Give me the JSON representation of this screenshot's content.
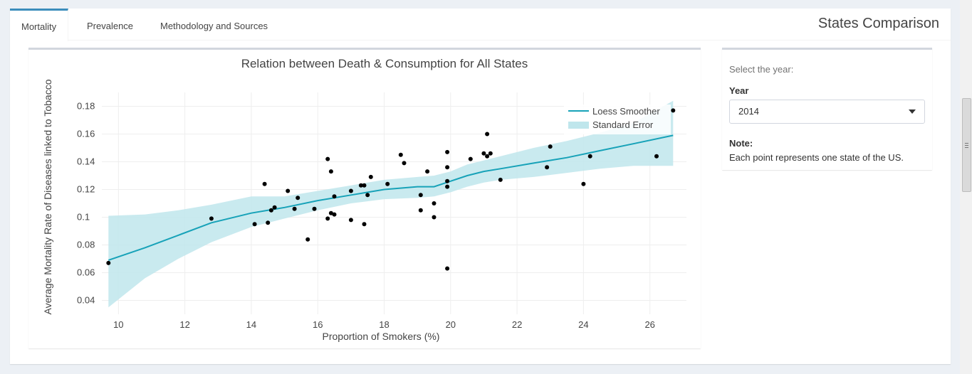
{
  "tabs": [
    {
      "label": "Mortality",
      "active": true
    },
    {
      "label": "Prevalence",
      "active": false
    },
    {
      "label": "Methodology and Sources",
      "active": false
    }
  ],
  "header": {
    "title": "States Comparison"
  },
  "sidebar": {
    "help_text": "Select the year:",
    "year_label": "Year",
    "year_selected": "2014",
    "note_label": "Note:",
    "note_text": "Each point represents one state of the US."
  },
  "colors": {
    "accent": "#3c8dbc",
    "line": "#17a2b8",
    "band": "#bfe6ec",
    "points": "#000000"
  },
  "chart_data": {
    "type": "scatter",
    "title": "Relation between Death & Consumption for All States",
    "xlabel": "Proportion of Smokers (%)",
    "ylabel": "Average Mortality Rate of Diseases linked to Tobacco",
    "xlim": [
      9.5,
      27.1
    ],
    "ylim": [
      0.03,
      0.19
    ],
    "x_ticks": [
      10,
      12,
      14,
      16,
      18,
      20,
      22,
      24,
      26
    ],
    "y_ticks": [
      0.04,
      0.06,
      0.08,
      0.1,
      0.12,
      0.14,
      0.16,
      0.18
    ],
    "y_tick_labels": [
      "0.04",
      "0.06",
      "0.08",
      "0.1",
      "0.12",
      "0.14",
      "0.16",
      "0.18"
    ],
    "grid": true,
    "legend_position": "top-right",
    "legend": [
      "Loess Smoother",
      "Standard Error"
    ],
    "points": [
      [
        9.7,
        0.067
      ],
      [
        12.8,
        0.099
      ],
      [
        14.1,
        0.095
      ],
      [
        14.4,
        0.124
      ],
      [
        14.5,
        0.096
      ],
      [
        14.6,
        0.105
      ],
      [
        14.7,
        0.107
      ],
      [
        15.1,
        0.119
      ],
      [
        15.3,
        0.106
      ],
      [
        15.4,
        0.114
      ],
      [
        15.7,
        0.084
      ],
      [
        15.9,
        0.106
      ],
      [
        16.3,
        0.142
      ],
      [
        16.3,
        0.099
      ],
      [
        16.4,
        0.133
      ],
      [
        16.4,
        0.103
      ],
      [
        16.5,
        0.102
      ],
      [
        16.5,
        0.115
      ],
      [
        17.0,
        0.119
      ],
      [
        17.0,
        0.098
      ],
      [
        17.3,
        0.123
      ],
      [
        17.4,
        0.095
      ],
      [
        17.4,
        0.123
      ],
      [
        17.5,
        0.116
      ],
      [
        17.6,
        0.129
      ],
      [
        18.1,
        0.124
      ],
      [
        18.5,
        0.145
      ],
      [
        18.6,
        0.139
      ],
      [
        19.1,
        0.116
      ],
      [
        19.1,
        0.105
      ],
      [
        19.3,
        0.133
      ],
      [
        19.5,
        0.11
      ],
      [
        19.5,
        0.1
      ],
      [
        19.9,
        0.147
      ],
      [
        19.9,
        0.136
      ],
      [
        19.9,
        0.126
      ],
      [
        19.9,
        0.122
      ],
      [
        19.9,
        0.063
      ],
      [
        20.6,
        0.142
      ],
      [
        21.0,
        0.146
      ],
      [
        21.1,
        0.16
      ],
      [
        21.1,
        0.144
      ],
      [
        21.2,
        0.146
      ],
      [
        21.5,
        0.127
      ],
      [
        22.9,
        0.136
      ],
      [
        23.0,
        0.151
      ],
      [
        24.0,
        0.124
      ],
      [
        24.2,
        0.144
      ],
      [
        26.2,
        0.144
      ],
      [
        26.7,
        0.177
      ]
    ],
    "smoother": {
      "x": [
        9.7,
        10.8,
        11.8,
        12.8,
        14.0,
        15.0,
        16.0,
        17.0,
        18.0,
        19.0,
        19.5,
        20.0,
        20.5,
        21.0,
        21.5,
        22.5,
        23.5,
        24.5,
        25.5,
        26.7
      ],
      "y": [
        0.069,
        0.078,
        0.087,
        0.096,
        0.103,
        0.107,
        0.112,
        0.116,
        0.12,
        0.122,
        0.122,
        0.126,
        0.13,
        0.133,
        0.135,
        0.139,
        0.143,
        0.148,
        0.153,
        0.159
      ],
      "lower": [
        0.035,
        0.056,
        0.07,
        0.082,
        0.093,
        0.099,
        0.105,
        0.11,
        0.113,
        0.114,
        0.115,
        0.118,
        0.122,
        0.125,
        0.127,
        0.129,
        0.132,
        0.135,
        0.137,
        0.137
      ],
      "upper": [
        0.101,
        0.102,
        0.105,
        0.109,
        0.115,
        0.115,
        0.119,
        0.123,
        0.127,
        0.129,
        0.13,
        0.133,
        0.138,
        0.141,
        0.144,
        0.15,
        0.155,
        0.161,
        0.168,
        0.184
      ]
    }
  }
}
